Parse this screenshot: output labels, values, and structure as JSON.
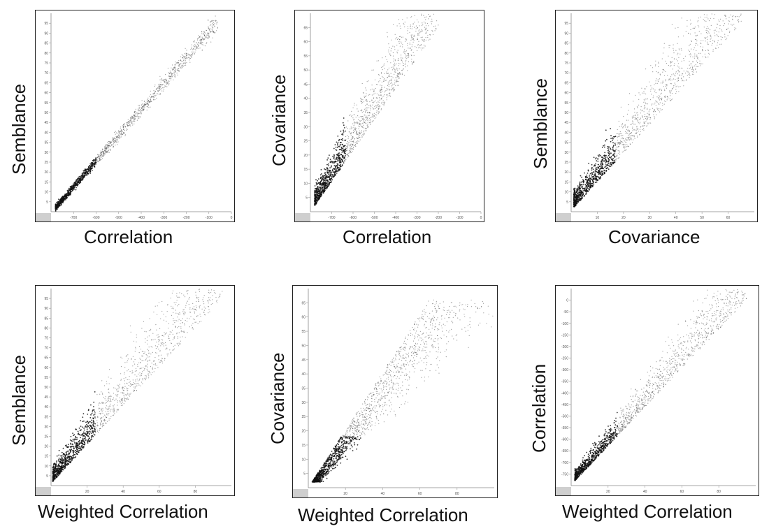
{
  "chart_data": [
    {
      "type": "scatter",
      "xlabel": "Correlation",
      "ylabel": "Semblance",
      "xlim": [
        -800,
        0
      ],
      "ylim": [
        0,
        100
      ],
      "xticks": [
        -700,
        -600,
        -500,
        -400,
        -300,
        -200,
        -100,
        0
      ],
      "yticks": [
        5,
        10,
        15,
        20,
        25,
        30,
        35,
        40,
        45,
        50,
        55,
        60,
        65,
        70,
        75,
        80,
        85,
        90,
        95
      ],
      "trend": {
        "x0": -780,
        "y0": 2,
        "x1": -60,
        "y1": 96
      }
    },
    {
      "type": "scatter",
      "xlabel": "Correlation",
      "ylabel": "Covariance",
      "xlim": [
        -800,
        0
      ],
      "ylim": [
        0,
        70
      ],
      "xticks": [
        -700,
        -600,
        -500,
        -400,
        -300,
        -200,
        -100,
        0
      ],
      "yticks": [
        5,
        10,
        15,
        20,
        25,
        30,
        35,
        40,
        45,
        50,
        55,
        60,
        65
      ],
      "trend": {
        "x0": -780,
        "y0": 2,
        "x1": -200,
        "y1": 65
      }
    },
    {
      "type": "scatter",
      "xlabel": "Covariance",
      "ylabel": "Semblance",
      "xlim": [
        0,
        70
      ],
      "ylim": [
        0,
        100
      ],
      "xticks": [
        10,
        20,
        30,
        40,
        50,
        60
      ],
      "yticks": [
        5,
        10,
        15,
        20,
        25,
        30,
        35,
        40,
        45,
        50,
        55,
        60,
        65,
        70,
        75,
        80,
        85,
        90,
        95
      ],
      "trend": {
        "x0": 1,
        "y0": 2,
        "x1": 65,
        "y1": 95
      }
    },
    {
      "type": "scatter",
      "xlabel": "Weighted Correlation",
      "ylabel": "Semblance",
      "xlim": [
        0,
        100
      ],
      "ylim": [
        0,
        100
      ],
      "xticks": [
        20,
        40,
        60,
        80
      ],
      "yticks": [
        5,
        10,
        15,
        20,
        25,
        30,
        35,
        40,
        45,
        50,
        55,
        60,
        65,
        70,
        75,
        80,
        85,
        90,
        95
      ],
      "trend": {
        "x0": 1,
        "y0": 2,
        "x1": 95,
        "y1": 95
      }
    },
    {
      "type": "scatter",
      "xlabel": "Weighted Correlation",
      "ylabel": "Covariance",
      "xlim": [
        0,
        100
      ],
      "ylim": [
        0,
        70
      ],
      "xticks": [
        20,
        40,
        60,
        80
      ],
      "yticks": [
        5,
        10,
        15,
        20,
        25,
        30,
        35,
        40,
        45,
        50,
        55,
        60,
        65
      ],
      "trend": {
        "x0": 2,
        "y0": 2,
        "x1": 65,
        "y1": 66
      }
    },
    {
      "type": "scatter",
      "xlabel": "Weighted Correlation",
      "ylabel": "Correlation",
      "xlim": [
        0,
        100
      ],
      "ylim": [
        -800,
        50
      ],
      "xticks": [
        20,
        40,
        60,
        80
      ],
      "yticks": [
        0,
        -50,
        -100,
        -150,
        -200,
        -250,
        -300,
        -350,
        -400,
        -450,
        -500,
        -550,
        -600,
        -650,
        -700,
        -750
      ],
      "trend": {
        "x0": 2,
        "y0": -780,
        "x1": 95,
        "y1": 0
      }
    }
  ]
}
